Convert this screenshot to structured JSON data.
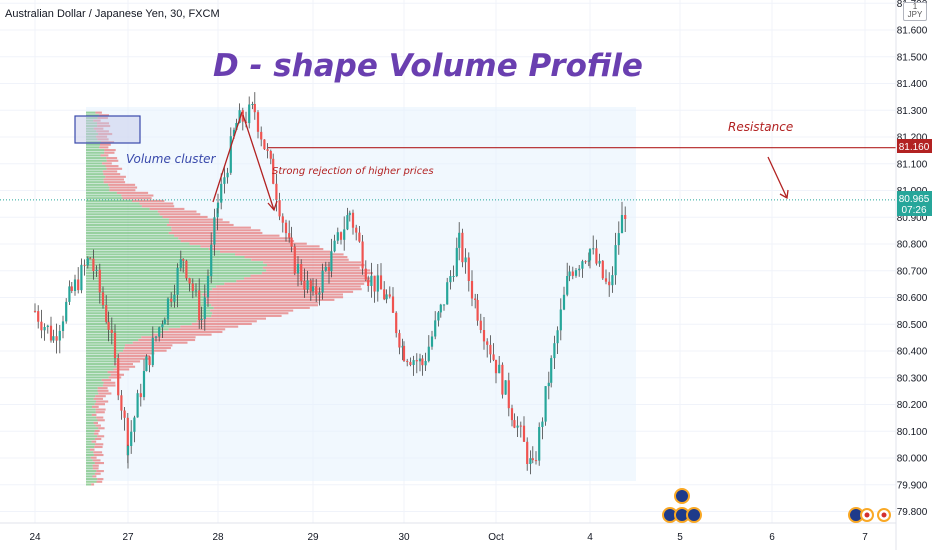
{
  "header": {
    "symbol_title": "Australian Dollar / Japanese Yen, 30, FXCM",
    "currency_badge": [
      "1",
      "JPY"
    ]
  },
  "price_axis": {
    "ticks": [
      "81.700",
      "81.600",
      "81.500",
      "81.400",
      "81.300",
      "81.200",
      "81.100",
      "81.000",
      "80.900",
      "80.800",
      "80.700",
      "80.600",
      "80.500",
      "80.400",
      "80.300",
      "80.200",
      "80.100",
      "80.000",
      "79.900",
      "79.800"
    ],
    "resistance_label": "81.160",
    "current_price_label": "80.965",
    "countdown_label": "07:26"
  },
  "time_axis": {
    "ticks": [
      "24",
      "27",
      "28",
      "29",
      "30",
      "Oct",
      "4",
      "5",
      "6",
      "7"
    ]
  },
  "annotations": {
    "headline": "D - shape Volume Profile",
    "volume_cluster": "Volume cluster",
    "rejection": "Strong rejection of higher prices",
    "resistance": "Resistance"
  },
  "colors": {
    "up": "#26a69a",
    "down": "#ef5350",
    "accent": "#6a3fb0",
    "resistance": "#b22222",
    "current": "#26a69a",
    "vp_up": "#4caf50",
    "vp_down": "#e57373"
  },
  "chart_data": {
    "type": "candlestick",
    "symbol": "Australian Dollar / Japanese Yen, 30, FXCM",
    "ylim": [
      79.75,
      81.75
    ],
    "x_categories": [
      "24",
      "27",
      "28",
      "29",
      "30",
      "Oct",
      "4",
      "5",
      "6",
      "7"
    ],
    "resistance_level": 81.16,
    "current_price": 80.965,
    "price_path": [
      [
        "24",
        80.55
      ],
      [
        "24",
        80.45
      ],
      [
        "24",
        80.62
      ],
      [
        "24",
        80.75
      ],
      [
        "24",
        80.5
      ],
      [
        "27",
        80.05
      ],
      [
        "27",
        80.35
      ],
      [
        "27",
        80.55
      ],
      [
        "27",
        80.75
      ],
      [
        "27",
        80.52
      ],
      [
        "28",
        80.95
      ],
      [
        "28",
        81.25
      ],
      [
        "28",
        81.3
      ],
      [
        "28",
        81.05
      ],
      [
        "28",
        80.75
      ],
      [
        "29",
        80.6
      ],
      [
        "29",
        80.75
      ],
      [
        "29",
        80.92
      ],
      [
        "29",
        80.68
      ],
      [
        "29",
        80.6
      ],
      [
        "30",
        80.4
      ],
      [
        "30",
        80.35
      ],
      [
        "30",
        80.55
      ],
      [
        "30",
        80.8
      ],
      [
        "30",
        80.55
      ],
      [
        "Oct",
        80.35
      ],
      [
        "Oct",
        80.15
      ],
      [
        "Oct",
        79.95
      ],
      [
        "Oct",
        80.35
      ],
      [
        "Oct",
        80.7
      ],
      [
        "4",
        80.78
      ],
      [
        "4",
        80.7
      ],
      [
        "4",
        80.62
      ],
      [
        "4",
        80.85
      ],
      [
        "4",
        80.97
      ]
    ],
    "volume_profile": {
      "price_range": [
        79.9,
        81.3
      ],
      "description_free": true
    }
  }
}
